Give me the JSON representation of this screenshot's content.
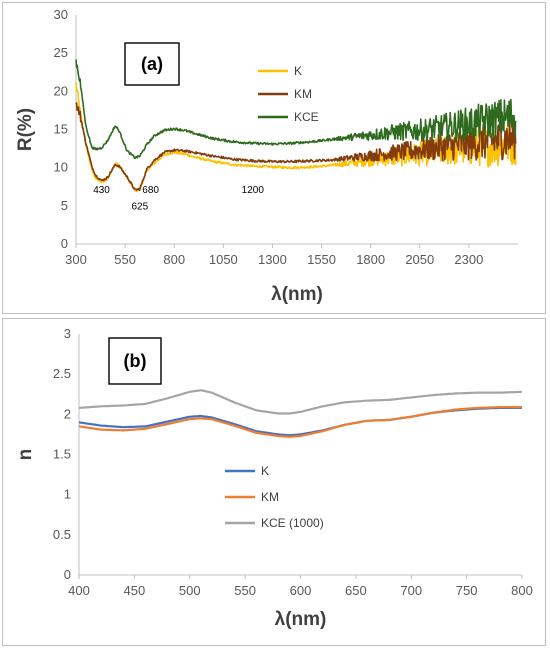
{
  "chart_data": [
    {
      "type": "line",
      "panel_label": "(a)",
      "xlabel": "λ(nm)",
      "ylabel": "R(%)",
      "xlim": [
        300,
        2550
      ],
      "ylim": [
        0,
        30
      ],
      "xticks": [
        300,
        550,
        800,
        1050,
        1300,
        1550,
        1800,
        2050,
        2300
      ],
      "yticks": [
        0,
        5,
        10,
        15,
        20,
        25,
        30
      ],
      "grid": false,
      "legend": "upper-right",
      "annotations": [
        {
          "text": "430",
          "x": 430,
          "y": 6.7
        },
        {
          "text": "625",
          "x": 625,
          "y": 4.5
        },
        {
          "text": "680",
          "x": 680,
          "y": 6.7
        },
        {
          "text": "1200",
          "x": 1200,
          "y": 6.7
        }
      ],
      "series": [
        {
          "name": "K",
          "color": "#FFC000",
          "noise": 1.0,
          "x": [
            300,
            320,
            350,
            380,
            400,
            430,
            460,
            500,
            520,
            560,
            600,
            625,
            660,
            700,
            750,
            800,
            850,
            900,
            1000,
            1100,
            1200,
            1300,
            1400,
            1500,
            1600,
            1700,
            1800,
            1900,
            2000,
            2100,
            2200,
            2300,
            2400,
            2500,
            2540
          ],
          "y": [
            21.0,
            17.5,
            13.0,
            9.8,
            8.6,
            8.1,
            8.5,
            10.6,
            10.3,
            8.7,
            7.0,
            7.1,
            9.6,
            10.6,
            11.7,
            12.0,
            11.8,
            11.4,
            10.8,
            10.4,
            10.2,
            10.1,
            10.0,
            10.1,
            10.3,
            10.6,
            11.0,
            11.3,
            11.6,
            12.0,
            12.3,
            12.6,
            12.8,
            13.2,
            13.4
          ]
        },
        {
          "name": "KM",
          "color": "#843C0C",
          "noise": 0.9,
          "x": [
            300,
            320,
            350,
            380,
            400,
            430,
            460,
            500,
            520,
            560,
            600,
            625,
            660,
            700,
            750,
            800,
            850,
            900,
            1000,
            1100,
            1200,
            1300,
            1400,
            1500,
            1600,
            1700,
            1800,
            1900,
            2000,
            2100,
            2200,
            2300,
            2400,
            2500,
            2540
          ],
          "y": [
            18.5,
            17.0,
            13.3,
            10.2,
            9.0,
            8.3,
            8.7,
            10.4,
            10.2,
            8.8,
            7.1,
            7.2,
            9.8,
            11.0,
            12.0,
            12.3,
            12.2,
            12.0,
            11.5,
            11.1,
            10.9,
            10.8,
            10.8,
            10.9,
            11.0,
            11.3,
            11.6,
            11.9,
            12.2,
            12.5,
            12.8,
            13.1,
            13.4,
            13.8,
            14.0
          ]
        },
        {
          "name": "KCE",
          "color": "#2E6B1E",
          "noise": 0.9,
          "x": [
            300,
            320,
            350,
            380,
            400,
            430,
            460,
            500,
            520,
            560,
            600,
            625,
            660,
            700,
            750,
            800,
            850,
            900,
            1000,
            1100,
            1200,
            1300,
            1400,
            1500,
            1600,
            1700,
            1800,
            1900,
            2000,
            2100,
            2200,
            2300,
            2400,
            2500,
            2540
          ],
          "y": [
            24.0,
            21.5,
            15.5,
            12.7,
            12.4,
            12.6,
            13.5,
            15.5,
            14.8,
            12.2,
            11.3,
            11.5,
            13.0,
            14.2,
            14.9,
            15.1,
            14.9,
            14.5,
            13.8,
            13.4,
            13.2,
            13.1,
            13.2,
            13.4,
            13.7,
            14.0,
            14.3,
            14.6,
            14.8,
            15.0,
            15.4,
            15.8,
            16.2,
            16.6,
            16.8
          ]
        }
      ]
    },
    {
      "type": "line",
      "panel_label": "(b)",
      "xlabel": "λ(nm)",
      "ylabel": "n",
      "xlim": [
        400,
        800
      ],
      "ylim": [
        0,
        3
      ],
      "xticks": [
        400,
        450,
        500,
        550,
        600,
        650,
        700,
        750,
        800
      ],
      "yticks": [
        0,
        0.5,
        1,
        1.5,
        2,
        2.5,
        3
      ],
      "ytick_labels": [
        "0",
        "0.5",
        "1",
        "1.5",
        "2",
        "2.5",
        "3"
      ],
      "grid": false,
      "legend": "center-left",
      "series": [
        {
          "name": "K",
          "color": "#4472C4",
          "x": [
            400,
            420,
            440,
            460,
            480,
            500,
            510,
            520,
            540,
            560,
            580,
            590,
            600,
            620,
            640,
            660,
            680,
            700,
            720,
            740,
            760,
            780,
            800
          ],
          "y": [
            1.9,
            1.86,
            1.84,
            1.85,
            1.91,
            1.97,
            1.98,
            1.96,
            1.88,
            1.79,
            1.75,
            1.74,
            1.75,
            1.8,
            1.87,
            1.92,
            1.93,
            1.97,
            2.02,
            2.05,
            2.07,
            2.08,
            2.08
          ]
        },
        {
          "name": "KM",
          "color": "#ED7D31",
          "x": [
            400,
            420,
            440,
            460,
            480,
            500,
            510,
            520,
            540,
            560,
            580,
            590,
            600,
            620,
            640,
            660,
            680,
            700,
            720,
            740,
            760,
            780,
            800
          ],
          "y": [
            1.85,
            1.81,
            1.8,
            1.82,
            1.88,
            1.94,
            1.95,
            1.94,
            1.86,
            1.77,
            1.73,
            1.72,
            1.73,
            1.79,
            1.87,
            1.92,
            1.93,
            1.97,
            2.02,
            2.06,
            2.08,
            2.09,
            2.09
          ]
        },
        {
          "name": "KCE (1000)",
          "color": "#A5A5A5",
          "x": [
            400,
            420,
            440,
            460,
            480,
            500,
            510,
            520,
            540,
            560,
            580,
            590,
            600,
            620,
            640,
            660,
            680,
            700,
            720,
            740,
            760,
            780,
            800
          ],
          "y": [
            2.08,
            2.1,
            2.11,
            2.13,
            2.2,
            2.28,
            2.3,
            2.27,
            2.15,
            2.05,
            2.01,
            2.01,
            2.03,
            2.1,
            2.15,
            2.17,
            2.18,
            2.21,
            2.24,
            2.26,
            2.27,
            2.27,
            2.28
          ]
        }
      ]
    }
  ]
}
